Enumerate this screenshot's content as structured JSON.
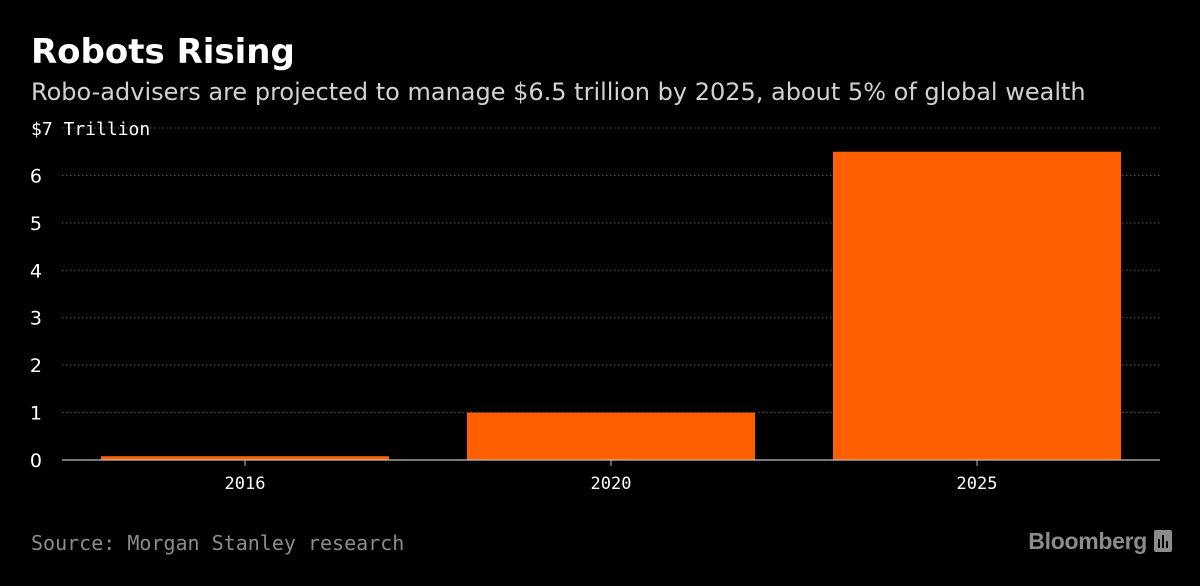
{
  "title": "Robots Rising",
  "subtitle": "Robo-advisers are projected to manage $6.5 trillion by 2025, about 5% of global wealth",
  "source": "Source: Morgan Stanley research",
  "brand": {
    "name": "Bloomberg",
    "icon": "bloomberg-terminal-icon"
  },
  "colors": {
    "background": "#000000",
    "bar": "#ff5f00",
    "text": "#ffffff",
    "subtitle": "#d2d2d2",
    "muted": "#8c8c8c",
    "grid": "#5a5a5a",
    "axis": "#bfbfbf"
  },
  "chart_data": {
    "type": "bar",
    "title": "Robots Rising",
    "subtitle": "Robo-advisers are projected to manage $6.5 trillion by 2025, about 5% of global wealth",
    "categories": [
      "2016",
      "2020",
      "2025"
    ],
    "values": [
      0.08,
      1.0,
      6.5
    ],
    "xlabel": "",
    "ylabel": "",
    "ylim": [
      0,
      7
    ],
    "yticks": [
      0,
      1,
      2,
      3,
      4,
      5,
      6,
      7
    ],
    "ytick_labels": [
      "0",
      "1",
      "2",
      "3",
      "4",
      "5",
      "6",
      "$7 Trillion"
    ],
    "grid": true,
    "legend": "none"
  }
}
